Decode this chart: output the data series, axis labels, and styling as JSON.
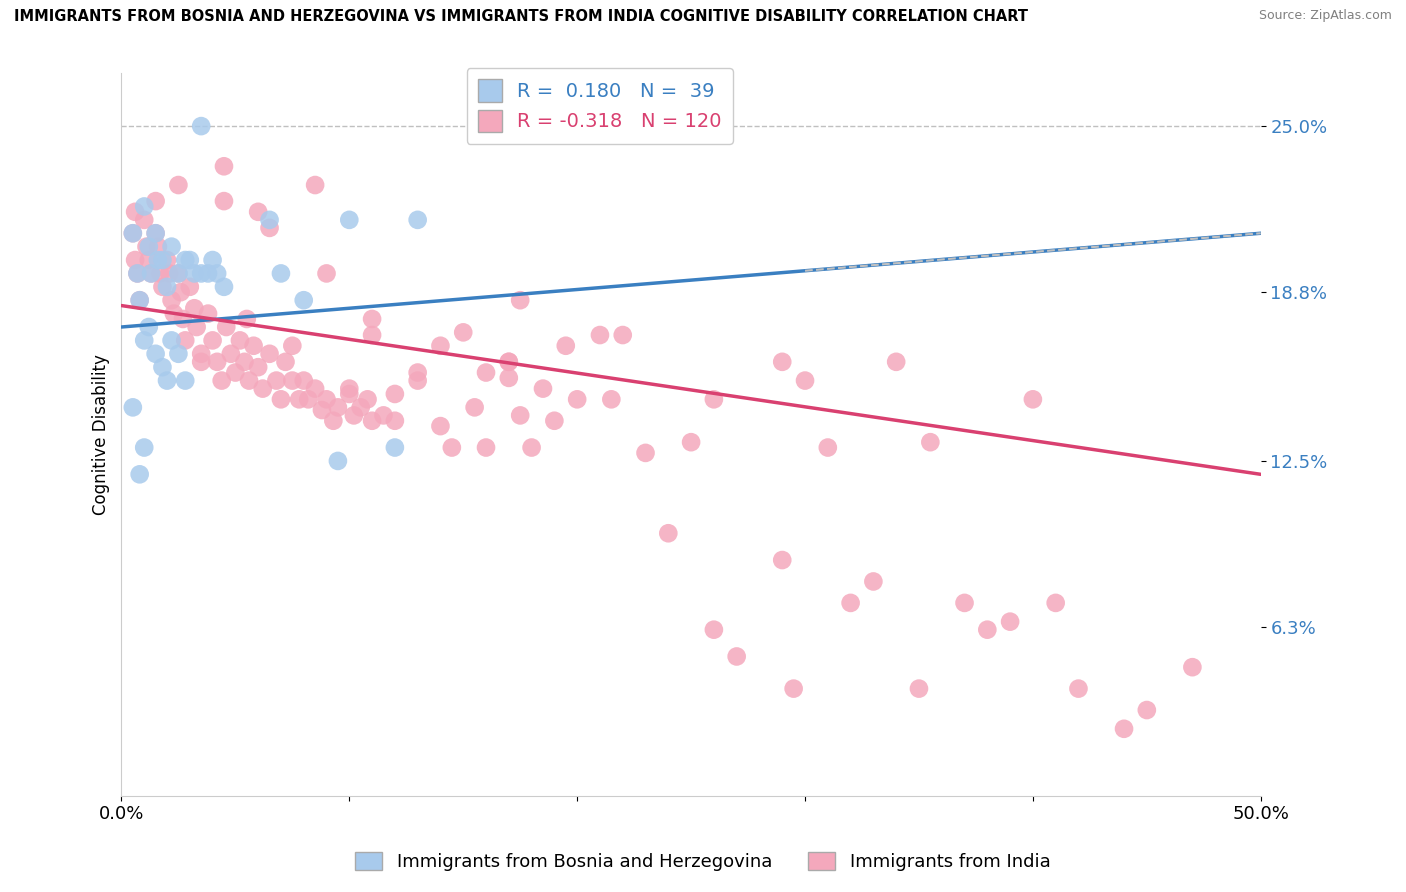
{
  "title": "IMMIGRANTS FROM BOSNIA AND HERZEGOVINA VS IMMIGRANTS FROM INDIA COGNITIVE DISABILITY CORRELATION CHART",
  "source": "Source: ZipAtlas.com",
  "ylabel": "Cognitive Disability",
  "yticks": [
    0.063,
    0.125,
    0.188,
    0.25
  ],
  "ytick_labels": [
    "6.3%",
    "12.5%",
    "18.8%",
    "25.0%"
  ],
  "xlim": [
    0.0,
    0.5
  ],
  "ylim": [
    0.0,
    0.27
  ],
  "blue_R": 0.18,
  "blue_N": 39,
  "pink_R": -0.318,
  "pink_N": 120,
  "blue_color": "#A8CAEC",
  "pink_color": "#F4A8BC",
  "blue_line_color": "#3A7FC1",
  "pink_line_color": "#D94070",
  "dashed_line_color": "#C0C0C0",
  "legend_label_blue": "Immigrants from Bosnia and Herzegovina",
  "legend_label_pink": "Immigrants from India",
  "blue_line_x0": 0.0,
  "blue_line_y0": 0.175,
  "blue_line_x1": 0.5,
  "blue_line_y1": 0.21,
  "pink_line_x0": 0.0,
  "pink_line_y0": 0.183,
  "pink_line_x1": 0.5,
  "pink_line_y1": 0.12,
  "blue_points": [
    [
      0.005,
      0.21
    ],
    [
      0.007,
      0.195
    ],
    [
      0.008,
      0.185
    ],
    [
      0.01,
      0.22
    ],
    [
      0.012,
      0.205
    ],
    [
      0.013,
      0.195
    ],
    [
      0.015,
      0.21
    ],
    [
      0.016,
      0.2
    ],
    [
      0.018,
      0.2
    ],
    [
      0.02,
      0.19
    ],
    [
      0.022,
      0.205
    ],
    [
      0.025,
      0.195
    ],
    [
      0.028,
      0.2
    ],
    [
      0.03,
      0.2
    ],
    [
      0.032,
      0.195
    ],
    [
      0.035,
      0.195
    ],
    [
      0.038,
      0.195
    ],
    [
      0.04,
      0.2
    ],
    [
      0.042,
      0.195
    ],
    [
      0.045,
      0.19
    ],
    [
      0.01,
      0.17
    ],
    [
      0.012,
      0.175
    ],
    [
      0.015,
      0.165
    ],
    [
      0.018,
      0.16
    ],
    [
      0.02,
      0.155
    ],
    [
      0.022,
      0.17
    ],
    [
      0.025,
      0.165
    ],
    [
      0.028,
      0.155
    ],
    [
      0.005,
      0.145
    ],
    [
      0.008,
      0.12
    ],
    [
      0.01,
      0.13
    ],
    [
      0.035,
      0.25
    ],
    [
      0.065,
      0.215
    ],
    [
      0.07,
      0.195
    ],
    [
      0.08,
      0.185
    ],
    [
      0.1,
      0.215
    ],
    [
      0.13,
      0.215
    ],
    [
      0.095,
      0.125
    ],
    [
      0.12,
      0.13
    ]
  ],
  "pink_points": [
    [
      0.005,
      0.21
    ],
    [
      0.006,
      0.2
    ],
    [
      0.007,
      0.195
    ],
    [
      0.008,
      0.185
    ],
    [
      0.01,
      0.215
    ],
    [
      0.011,
      0.205
    ],
    [
      0.012,
      0.2
    ],
    [
      0.013,
      0.195
    ],
    [
      0.015,
      0.21
    ],
    [
      0.016,
      0.205
    ],
    [
      0.017,
      0.195
    ],
    [
      0.018,
      0.19
    ],
    [
      0.02,
      0.2
    ],
    [
      0.021,
      0.195
    ],
    [
      0.022,
      0.185
    ],
    [
      0.023,
      0.18
    ],
    [
      0.025,
      0.195
    ],
    [
      0.026,
      0.188
    ],
    [
      0.027,
      0.178
    ],
    [
      0.028,
      0.17
    ],
    [
      0.03,
      0.19
    ],
    [
      0.032,
      0.182
    ],
    [
      0.033,
      0.175
    ],
    [
      0.035,
      0.165
    ],
    [
      0.038,
      0.18
    ],
    [
      0.04,
      0.17
    ],
    [
      0.042,
      0.162
    ],
    [
      0.044,
      0.155
    ],
    [
      0.046,
      0.175
    ],
    [
      0.048,
      0.165
    ],
    [
      0.05,
      0.158
    ],
    [
      0.052,
      0.17
    ],
    [
      0.054,
      0.162
    ],
    [
      0.056,
      0.155
    ],
    [
      0.058,
      0.168
    ],
    [
      0.06,
      0.16
    ],
    [
      0.062,
      0.152
    ],
    [
      0.065,
      0.165
    ],
    [
      0.068,
      0.155
    ],
    [
      0.07,
      0.148
    ],
    [
      0.072,
      0.162
    ],
    [
      0.075,
      0.155
    ],
    [
      0.078,
      0.148
    ],
    [
      0.08,
      0.155
    ],
    [
      0.082,
      0.148
    ],
    [
      0.085,
      0.152
    ],
    [
      0.088,
      0.144
    ],
    [
      0.09,
      0.148
    ],
    [
      0.093,
      0.14
    ],
    [
      0.095,
      0.145
    ],
    [
      0.1,
      0.15
    ],
    [
      0.102,
      0.142
    ],
    [
      0.105,
      0.145
    ],
    [
      0.108,
      0.148
    ],
    [
      0.11,
      0.14
    ],
    [
      0.115,
      0.142
    ],
    [
      0.12,
      0.15
    ],
    [
      0.13,
      0.155
    ],
    [
      0.006,
      0.218
    ],
    [
      0.015,
      0.222
    ],
    [
      0.14,
      0.168
    ],
    [
      0.15,
      0.173
    ],
    [
      0.16,
      0.158
    ],
    [
      0.17,
      0.162
    ],
    [
      0.175,
      0.142
    ],
    [
      0.18,
      0.13
    ],
    [
      0.185,
      0.152
    ],
    [
      0.045,
      0.222
    ],
    [
      0.06,
      0.218
    ],
    [
      0.085,
      0.228
    ],
    [
      0.11,
      0.178
    ],
    [
      0.14,
      0.138
    ],
    [
      0.16,
      0.13
    ],
    [
      0.175,
      0.185
    ],
    [
      0.2,
      0.148
    ],
    [
      0.22,
      0.172
    ],
    [
      0.23,
      0.128
    ],
    [
      0.25,
      0.132
    ],
    [
      0.025,
      0.228
    ],
    [
      0.045,
      0.235
    ],
    [
      0.065,
      0.212
    ],
    [
      0.09,
      0.195
    ],
    [
      0.11,
      0.172
    ],
    [
      0.13,
      0.158
    ],
    [
      0.155,
      0.145
    ],
    [
      0.17,
      0.162
    ],
    [
      0.19,
      0.14
    ],
    [
      0.21,
      0.172
    ],
    [
      0.035,
      0.162
    ],
    [
      0.055,
      0.178
    ],
    [
      0.075,
      0.168
    ],
    [
      0.1,
      0.152
    ],
    [
      0.12,
      0.14
    ],
    [
      0.145,
      0.13
    ],
    [
      0.17,
      0.156
    ],
    [
      0.195,
      0.168
    ],
    [
      0.215,
      0.148
    ],
    [
      0.26,
      0.148
    ],
    [
      0.29,
      0.162
    ],
    [
      0.31,
      0.13
    ],
    [
      0.34,
      0.162
    ],
    [
      0.355,
      0.132
    ],
    [
      0.3,
      0.155
    ],
    [
      0.37,
      0.072
    ],
    [
      0.39,
      0.065
    ],
    [
      0.29,
      0.088
    ],
    [
      0.32,
      0.072
    ],
    [
      0.24,
      0.098
    ],
    [
      0.26,
      0.062
    ],
    [
      0.27,
      0.052
    ],
    [
      0.295,
      0.04
    ],
    [
      0.33,
      0.08
    ],
    [
      0.35,
      0.04
    ],
    [
      0.38,
      0.062
    ],
    [
      0.4,
      0.148
    ],
    [
      0.42,
      0.04
    ],
    [
      0.45,
      0.032
    ],
    [
      0.47,
      0.048
    ],
    [
      0.41,
      0.072
    ],
    [
      0.44,
      0.025
    ]
  ]
}
